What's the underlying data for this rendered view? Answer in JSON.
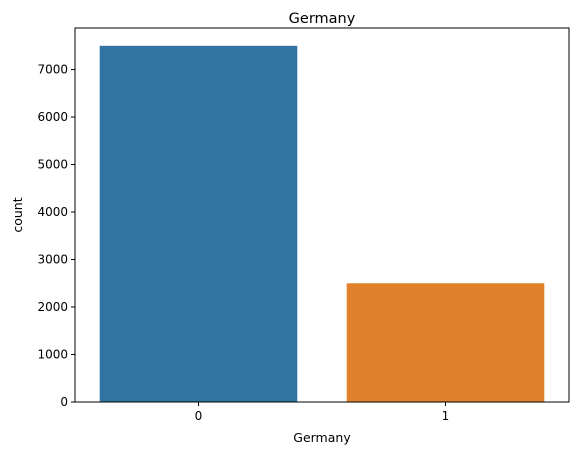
{
  "chart_data": {
    "type": "bar",
    "title": "Germany",
    "xlabel": "Germany",
    "ylabel": "count",
    "categories": [
      "0",
      "1"
    ],
    "values": [
      7500,
      2500
    ],
    "colors": [
      "#3274a1",
      "#e1812c"
    ],
    "ylim": [
      0,
      7875
    ],
    "yticks": [
      0,
      1000,
      2000,
      3000,
      4000,
      5000,
      6000,
      7000
    ],
    "grid": false,
    "legend": "none"
  }
}
